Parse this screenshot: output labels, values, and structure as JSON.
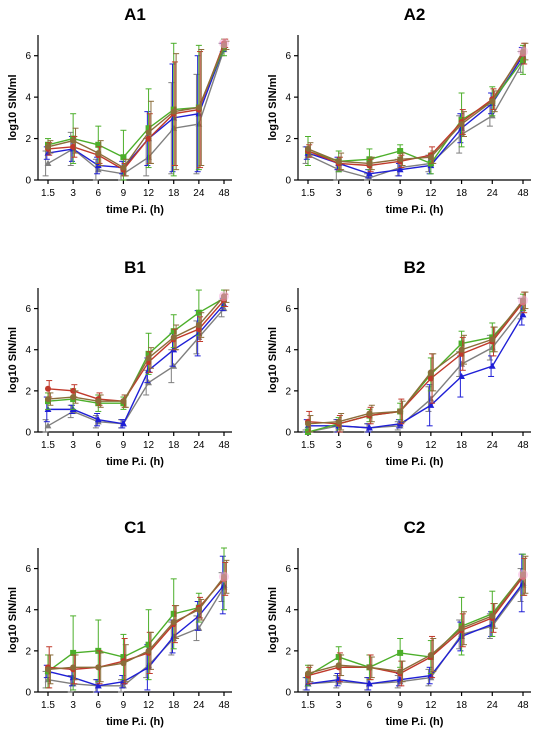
{
  "colors": {
    "grey": "#7f7f7f",
    "blue": "#1f1fd6",
    "green": "#4caf2a",
    "red": "#c0392b",
    "brown": "#8b6d3a",
    "pink_halo": "#f7a8d8"
  },
  "chart_data": [
    {
      "type": "line",
      "title": "A1",
      "xlabel": "time P.i. (h)",
      "ylabel": "log10 SIN/ml",
      "categories": [
        "1.5",
        "3",
        "6",
        "9",
        "12",
        "18",
        "24",
        "48"
      ],
      "ylim": [
        0,
        7
      ],
      "yticks": [
        "0",
        "2",
        "4",
        "6"
      ],
      "grid": false,
      "series": [
        {
          "color": "grey",
          "marker": "triangle",
          "values": [
            0.8,
            1.5,
            0.5,
            0.3,
            1.1,
            2.5,
            2.7,
            6.3
          ],
          "errors": [
            0.6,
            0.8,
            0.5,
            0.3,
            0.9,
            2.2,
            2.4,
            0.3
          ]
        },
        {
          "color": "blue",
          "marker": "triangle",
          "values": [
            1.3,
            1.5,
            0.7,
            0.6,
            2.0,
            3.0,
            3.2,
            6.4
          ],
          "errors": [
            0.3,
            0.6,
            0.4,
            0.3,
            1.3,
            2.6,
            2.8,
            0.2
          ]
        },
        {
          "color": "green",
          "marker": "square",
          "values": [
            1.7,
            2.0,
            1.7,
            1.1,
            2.5,
            3.4,
            3.5,
            6.4
          ],
          "errors": [
            0.3,
            1.2,
            0.9,
            1.3,
            1.9,
            3.2,
            3.0,
            0.4
          ]
        },
        {
          "color": "red",
          "marker": "circle",
          "values": [
            1.5,
            1.6,
            1.2,
            0.5,
            2.0,
            3.2,
            3.4,
            6.6
          ],
          "errors": [
            0.3,
            0.5,
            0.4,
            0.3,
            1.2,
            2.5,
            2.8,
            0.2
          ]
        },
        {
          "color": "brown",
          "marker": "circle",
          "values": [
            1.6,
            1.9,
            1.3,
            0.6,
            2.3,
            3.3,
            3.5,
            6.5
          ],
          "errors": [
            0.3,
            0.6,
            0.6,
            0.4,
            1.5,
            2.8,
            2.8,
            0.2
          ]
        }
      ]
    },
    {
      "type": "line",
      "title": "A2",
      "xlabel": "time P.i. (h)",
      "ylabel": "log10 SIN/ml",
      "categories": [
        "1.5",
        "3",
        "6",
        "9",
        "12",
        "18",
        "24",
        "48"
      ],
      "ylim": [
        0,
        7
      ],
      "yticks": [
        "0",
        "2",
        "4",
        "6"
      ],
      "grid": false,
      "series": [
        {
          "color": "grey",
          "marker": "triangle",
          "values": [
            1.2,
            0.5,
            0.1,
            0.6,
            0.8,
            2.2,
            3.1,
            5.7
          ],
          "errors": [
            0.4,
            0.5,
            0.2,
            0.4,
            0.4,
            0.9,
            0.5,
            0.5
          ]
        },
        {
          "color": "blue",
          "marker": "triangle",
          "values": [
            1.3,
            0.8,
            0.3,
            0.5,
            0.7,
            2.5,
            3.7,
            6.0
          ],
          "errors": [
            0.3,
            0.3,
            0.2,
            0.3,
            0.4,
            0.7,
            0.5,
            0.4
          ]
        },
        {
          "color": "green",
          "marker": "square",
          "values": [
            1.4,
            0.9,
            1.0,
            1.4,
            0.8,
            2.9,
            3.8,
            5.8
          ],
          "errors": [
            0.7,
            0.5,
            0.5,
            0.3,
            0.5,
            1.3,
            0.7,
            0.7
          ]
        },
        {
          "color": "red",
          "marker": "circle",
          "values": [
            1.4,
            0.8,
            0.7,
            0.9,
            1.2,
            2.8,
            3.9,
            6.1
          ],
          "errors": [
            0.3,
            0.3,
            0.3,
            0.3,
            0.4,
            0.6,
            0.5,
            0.5
          ]
        },
        {
          "color": "brown",
          "marker": "circle",
          "values": [
            1.5,
            0.9,
            0.8,
            1.0,
            1.1,
            2.7,
            3.8,
            6.2
          ],
          "errors": [
            0.3,
            0.4,
            0.3,
            0.3,
            0.3,
            0.6,
            0.5,
            0.4
          ]
        }
      ]
    },
    {
      "type": "line",
      "title": "B1",
      "xlabel": "time P.i. (h)",
      "ylabel": "log10 SIN/ml",
      "categories": [
        "1.5",
        "3",
        "6",
        "9",
        "12",
        "18",
        "24",
        "48"
      ],
      "ylim": [
        0,
        7
      ],
      "yticks": [
        "0",
        "2",
        "4",
        "6"
      ],
      "grid": false,
      "series": [
        {
          "color": "grey",
          "marker": "triangle",
          "values": [
            0.3,
            1.0,
            0.5,
            0.4,
            2.4,
            3.2,
            4.6,
            6.0
          ],
          "errors": [
            0.3,
            0.3,
            0.3,
            0.2,
            0.6,
            0.8,
            0.8,
            0.4
          ]
        },
        {
          "color": "blue",
          "marker": "triangle",
          "values": [
            1.1,
            1.1,
            0.6,
            0.4,
            3.0,
            4.0,
            4.8,
            6.2
          ],
          "errors": [
            0.6,
            0.2,
            0.3,
            0.2,
            0.6,
            0.8,
            1.1,
            0.3
          ]
        },
        {
          "color": "green",
          "marker": "square",
          "values": [
            1.5,
            1.6,
            1.4,
            1.4,
            3.8,
            4.9,
            5.8,
            6.5
          ],
          "errors": [
            0.4,
            0.5,
            0.4,
            0.3,
            1.0,
            0.8,
            1.1,
            0.4
          ]
        },
        {
          "color": "red",
          "marker": "circle",
          "values": [
            2.1,
            2.0,
            1.6,
            1.5,
            3.4,
            4.5,
            5.0,
            6.4
          ],
          "errors": [
            0.4,
            0.3,
            0.3,
            0.3,
            0.5,
            0.5,
            0.6,
            0.3
          ]
        },
        {
          "color": "brown",
          "marker": "circle",
          "values": [
            1.6,
            1.7,
            1.5,
            1.5,
            3.6,
            4.6,
            5.2,
            6.6
          ],
          "errors": [
            0.3,
            0.3,
            0.3,
            0.3,
            0.5,
            0.6,
            0.6,
            0.3
          ]
        }
      ]
    },
    {
      "type": "line",
      "title": "B2",
      "xlabel": "time P.i. (h)",
      "ylabel": "log10 SIN/ml",
      "categories": [
        "1.5",
        "3",
        "6",
        "9",
        "12",
        "18",
        "24",
        "48"
      ],
      "ylim": [
        0,
        7
      ],
      "yticks": [
        "0",
        "2",
        "4",
        "6"
      ],
      "grid": false,
      "series": [
        {
          "color": "grey",
          "marker": "triangle",
          "values": [
            0.0,
            0.3,
            0.2,
            0.3,
            1.6,
            3.3,
            4.1,
            6.0
          ],
          "errors": [
            0.1,
            0.3,
            0.2,
            0.2,
            0.6,
            0.6,
            0.6,
            0.5
          ]
        },
        {
          "color": "blue",
          "marker": "triangle",
          "values": [
            0.3,
            0.3,
            0.2,
            0.4,
            1.3,
            2.7,
            3.2,
            5.7
          ],
          "errors": [
            0.3,
            0.3,
            0.2,
            0.2,
            1.0,
            1.0,
            0.5,
            0.5
          ]
        },
        {
          "color": "green",
          "marker": "square",
          "values": [
            0.0,
            0.4,
            0.8,
            1.0,
            2.8,
            4.3,
            4.6,
            6.3
          ],
          "errors": [
            0.2,
            0.3,
            0.3,
            0.4,
            0.8,
            0.6,
            0.7,
            0.4
          ]
        },
        {
          "color": "red",
          "marker": "circle",
          "values": [
            0.5,
            0.4,
            0.8,
            1.0,
            2.6,
            3.8,
            4.4,
            6.3
          ],
          "errors": [
            0.5,
            0.4,
            0.4,
            0.6,
            1.2,
            0.8,
            0.7,
            0.5
          ]
        },
        {
          "color": "brown",
          "marker": "circle",
          "values": [
            0.4,
            0.5,
            0.9,
            1.0,
            2.9,
            4.0,
            4.5,
            6.4
          ],
          "errors": [
            0.4,
            0.4,
            0.4,
            0.5,
            0.9,
            0.7,
            0.6,
            0.4
          ]
        }
      ]
    },
    {
      "type": "line",
      "title": "C1",
      "xlabel": "time P.i. (h)",
      "ylabel": "log10 SIN/ml",
      "categories": [
        "1.5",
        "3",
        "6",
        "9",
        "12",
        "18",
        "24",
        "48"
      ],
      "ylim": [
        0,
        7
      ],
      "yticks": [
        "0",
        "2",
        "4",
        "6"
      ],
      "grid": false,
      "series": [
        {
          "color": "grey",
          "marker": "triangle",
          "values": [
            0.6,
            0.4,
            0.3,
            0.3,
            1.3,
            2.6,
            3.1,
            5.1
          ],
          "errors": [
            0.4,
            0.4,
            0.3,
            0.3,
            0.6,
            0.8,
            0.6,
            0.7
          ]
        },
        {
          "color": "blue",
          "marker": "triangle",
          "values": [
            1.0,
            0.7,
            0.3,
            0.5,
            1.2,
            2.7,
            3.7,
            5.2
          ],
          "errors": [
            0.3,
            0.4,
            0.3,
            0.3,
            1.1,
            0.8,
            0.7,
            1.4
          ]
        },
        {
          "color": "green",
          "marker": "square",
          "values": [
            1.0,
            1.9,
            2.0,
            1.7,
            2.3,
            3.8,
            4.1,
            5.5
          ],
          "errors": [
            0.8,
            1.8,
            1.5,
            1.1,
            1.7,
            1.7,
            0.7,
            1.5
          ]
        },
        {
          "color": "red",
          "marker": "circle",
          "values": [
            1.2,
            1.1,
            1.2,
            1.5,
            1.9,
            3.3,
            4.1,
            5.5
          ],
          "errors": [
            1.0,
            0.7,
            0.8,
            1.1,
            1.0,
            0.9,
            0.5,
            0.8
          ]
        },
        {
          "color": "brown",
          "marker": "circle",
          "values": [
            1.1,
            1.2,
            1.2,
            1.4,
            2.0,
            3.4,
            4.0,
            5.6
          ],
          "errors": [
            0.7,
            0.6,
            0.7,
            0.9,
            0.9,
            0.8,
            0.5,
            0.8
          ]
        }
      ]
    },
    {
      "type": "line",
      "title": "C2",
      "xlabel": "time P.i. (h)",
      "ylabel": "log10 SIN/ml",
      "categories": [
        "1.5",
        "3",
        "6",
        "9",
        "12",
        "18",
        "24",
        "48"
      ],
      "ylim": [
        0,
        7
      ],
      "yticks": [
        "0",
        "2",
        "4",
        "6"
      ],
      "grid": false,
      "series": [
        {
          "color": "grey",
          "marker": "triangle",
          "values": [
            0.4,
            0.5,
            0.4,
            0.5,
            0.7,
            2.8,
            3.2,
            5.2
          ],
          "errors": [
            0.3,
            0.3,
            0.3,
            0.3,
            0.4,
            0.7,
            0.6,
            0.8
          ]
        },
        {
          "color": "blue",
          "marker": "triangle",
          "values": [
            0.4,
            0.6,
            0.4,
            0.6,
            0.8,
            2.7,
            3.3,
            5.3
          ],
          "errors": [
            0.3,
            0.3,
            0.3,
            0.3,
            0.4,
            0.7,
            0.6,
            1.4
          ]
        },
        {
          "color": "green",
          "marker": "square",
          "values": [
            0.8,
            1.7,
            1.2,
            1.9,
            1.7,
            3.2,
            3.8,
            5.7
          ],
          "errors": [
            0.5,
            0.5,
            0.6,
            0.7,
            0.8,
            1.4,
            1.1,
            1.0
          ]
        },
        {
          "color": "red",
          "marker": "circle",
          "values": [
            0.8,
            1.2,
            1.2,
            0.9,
            1.7,
            3.0,
            3.6,
            5.6
          ],
          "errors": [
            0.4,
            0.7,
            0.6,
            0.6,
            1.0,
            0.8,
            0.7,
            0.9
          ]
        },
        {
          "color": "brown",
          "marker": "circle",
          "values": [
            0.9,
            1.3,
            1.2,
            1.0,
            1.8,
            3.1,
            3.7,
            5.7
          ],
          "errors": [
            0.4,
            0.5,
            0.5,
            0.5,
            0.8,
            0.8,
            0.6,
            0.9
          ]
        }
      ]
    }
  ]
}
